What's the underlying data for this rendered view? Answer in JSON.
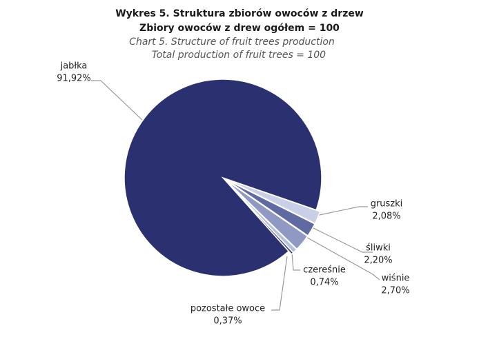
{
  "chart_data": {
    "type": "pie",
    "title": "Wykres 5. Struktura zbiorów owoców z drzew",
    "title_line2": "Zbiory owoców z drew ogółem = 100",
    "subtitle": "Chart 5. Structure of fruit trees production",
    "subtitle_line2": "Total production  of fruit trees = 100",
    "categories": [
      "jabłka",
      "gruszki",
      "śliwki",
      "wiśnie",
      "czereśnie",
      "pozostałe owoce"
    ],
    "values": [
      91.92,
      2.08,
      2.2,
      2.7,
      0.74,
      0.37
    ],
    "value_labels": [
      "91,92%",
      "2,08%",
      "2,20%",
      "2,70%",
      "0,74%",
      "0,37%"
    ],
    "colors": [
      "#2b3170",
      "#c9cfe6",
      "#5f6aa3",
      "#8f99c4",
      "#b7c0dc",
      "#3d406f"
    ]
  }
}
